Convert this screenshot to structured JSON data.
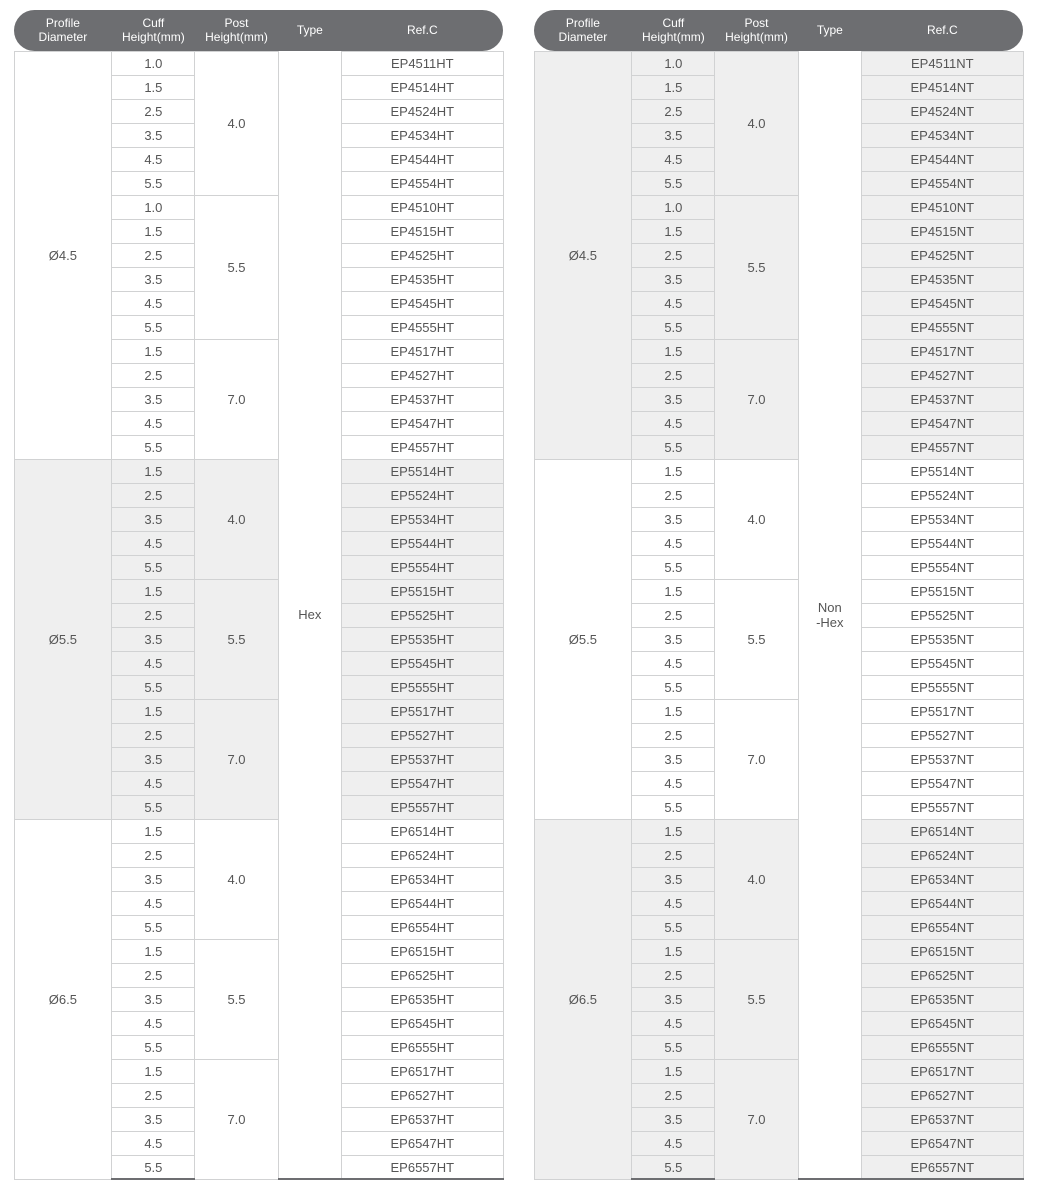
{
  "headers": {
    "profile": "Profile\nDiameter",
    "cuff": "Cuff\nHeight(mm)",
    "post": "Post\nHeight(mm)",
    "type": "Type",
    "ref": "Ref.C"
  },
  "tables": [
    {
      "type_label": "Hex",
      "type_rowspan": 47,
      "groups": [
        {
          "profile": "Ø4.5",
          "shade": false,
          "subs": [
            {
              "post": "4.0",
              "rows": [
                {
                  "cuff": "1.0",
                  "ref": "EP4511HT"
                },
                {
                  "cuff": "1.5",
                  "ref": "EP4514HT"
                },
                {
                  "cuff": "2.5",
                  "ref": "EP4524HT"
                },
                {
                  "cuff": "3.5",
                  "ref": "EP4534HT"
                },
                {
                  "cuff": "4.5",
                  "ref": "EP4544HT"
                },
                {
                  "cuff": "5.5",
                  "ref": "EP4554HT"
                }
              ]
            },
            {
              "post": "5.5",
              "rows": [
                {
                  "cuff": "1.0",
                  "ref": "EP4510HT"
                },
                {
                  "cuff": "1.5",
                  "ref": "EP4515HT"
                },
                {
                  "cuff": "2.5",
                  "ref": "EP4525HT"
                },
                {
                  "cuff": "3.5",
                  "ref": "EP4535HT"
                },
                {
                  "cuff": "4.5",
                  "ref": "EP4545HT"
                },
                {
                  "cuff": "5.5",
                  "ref": "EP4555HT"
                }
              ]
            },
            {
              "post": "7.0",
              "rows": [
                {
                  "cuff": "1.5",
                  "ref": "EP4517HT"
                },
                {
                  "cuff": "2.5",
                  "ref": "EP4527HT"
                },
                {
                  "cuff": "3.5",
                  "ref": "EP4537HT"
                },
                {
                  "cuff": "4.5",
                  "ref": "EP4547HT"
                },
                {
                  "cuff": "5.5",
                  "ref": "EP4557HT"
                }
              ]
            }
          ]
        },
        {
          "profile": "Ø5.5",
          "shade": true,
          "subs": [
            {
              "post": "4.0",
              "rows": [
                {
                  "cuff": "1.5",
                  "ref": "EP5514HT"
                },
                {
                  "cuff": "2.5",
                  "ref": "EP5524HT"
                },
                {
                  "cuff": "3.5",
                  "ref": "EP5534HT"
                },
                {
                  "cuff": "4.5",
                  "ref": "EP5544HT"
                },
                {
                  "cuff": "5.5",
                  "ref": "EP5554HT"
                }
              ]
            },
            {
              "post": "5.5",
              "rows": [
                {
                  "cuff": "1.5",
                  "ref": "EP5515HT"
                },
                {
                  "cuff": "2.5",
                  "ref": "EP5525HT"
                },
                {
                  "cuff": "3.5",
                  "ref": "EP5535HT"
                },
                {
                  "cuff": "4.5",
                  "ref": "EP5545HT"
                },
                {
                  "cuff": "5.5",
                  "ref": "EP5555HT"
                }
              ]
            },
            {
              "post": "7.0",
              "rows": [
                {
                  "cuff": "1.5",
                  "ref": "EP5517HT"
                },
                {
                  "cuff": "2.5",
                  "ref": "EP5527HT"
                },
                {
                  "cuff": "3.5",
                  "ref": "EP5537HT"
                },
                {
                  "cuff": "4.5",
                  "ref": "EP5547HT"
                },
                {
                  "cuff": "5.5",
                  "ref": "EP5557HT"
                }
              ]
            }
          ]
        },
        {
          "profile": "Ø6.5",
          "shade": false,
          "subs": [
            {
              "post": "4.0",
              "rows": [
                {
                  "cuff": "1.5",
                  "ref": "EP6514HT"
                },
                {
                  "cuff": "2.5",
                  "ref": "EP6524HT"
                },
                {
                  "cuff": "3.5",
                  "ref": "EP6534HT"
                },
                {
                  "cuff": "4.5",
                  "ref": "EP6544HT"
                },
                {
                  "cuff": "5.5",
                  "ref": "EP6554HT"
                }
              ]
            },
            {
              "post": "5.5",
              "rows": [
                {
                  "cuff": "1.5",
                  "ref": "EP6515HT"
                },
                {
                  "cuff": "2.5",
                  "ref": "EP6525HT"
                },
                {
                  "cuff": "3.5",
                  "ref": "EP6535HT"
                },
                {
                  "cuff": "4.5",
                  "ref": "EP6545HT"
                },
                {
                  "cuff": "5.5",
                  "ref": "EP6555HT"
                }
              ]
            },
            {
              "post": "7.0",
              "rows": [
                {
                  "cuff": "1.5",
                  "ref": "EP6517HT"
                },
                {
                  "cuff": "2.5",
                  "ref": "EP6527HT"
                },
                {
                  "cuff": "3.5",
                  "ref": "EP6537HT"
                },
                {
                  "cuff": "4.5",
                  "ref": "EP6547HT"
                },
                {
                  "cuff": "5.5",
                  "ref": "EP6557HT"
                }
              ]
            }
          ]
        }
      ]
    },
    {
      "type_label": "Non\n-Hex",
      "type_rowspan": 47,
      "groups": [
        {
          "profile": "Ø4.5",
          "shade": true,
          "subs": [
            {
              "post": "4.0",
              "rows": [
                {
                  "cuff": "1.0",
                  "ref": "EP4511NT"
                },
                {
                  "cuff": "1.5",
                  "ref": "EP4514NT"
                },
                {
                  "cuff": "2.5",
                  "ref": "EP4524NT"
                },
                {
                  "cuff": "3.5",
                  "ref": "EP4534NT"
                },
                {
                  "cuff": "4.5",
                  "ref": "EP4544NT"
                },
                {
                  "cuff": "5.5",
                  "ref": "EP4554NT"
                }
              ]
            },
            {
              "post": "5.5",
              "rows": [
                {
                  "cuff": "1.0",
                  "ref": "EP4510NT"
                },
                {
                  "cuff": "1.5",
                  "ref": "EP4515NT"
                },
                {
                  "cuff": "2.5",
                  "ref": "EP4525NT"
                },
                {
                  "cuff": "3.5",
                  "ref": "EP4535NT"
                },
                {
                  "cuff": "4.5",
                  "ref": "EP4545NT"
                },
                {
                  "cuff": "5.5",
                  "ref": "EP4555NT"
                }
              ]
            },
            {
              "post": "7.0",
              "rows": [
                {
                  "cuff": "1.5",
                  "ref": "EP4517NT"
                },
                {
                  "cuff": "2.5",
                  "ref": "EP4527NT"
                },
                {
                  "cuff": "3.5",
                  "ref": "EP4537NT"
                },
                {
                  "cuff": "4.5",
                  "ref": "EP4547NT"
                },
                {
                  "cuff": "5.5",
                  "ref": "EP4557NT"
                }
              ]
            }
          ]
        },
        {
          "profile": "Ø5.5",
          "shade": false,
          "subs": [
            {
              "post": "4.0",
              "rows": [
                {
                  "cuff": "1.5",
                  "ref": "EP5514NT"
                },
                {
                  "cuff": "2.5",
                  "ref": "EP5524NT"
                },
                {
                  "cuff": "3.5",
                  "ref": "EP5534NT"
                },
                {
                  "cuff": "4.5",
                  "ref": "EP5544NT"
                },
                {
                  "cuff": "5.5",
                  "ref": "EP5554NT"
                }
              ]
            },
            {
              "post": "5.5",
              "rows": [
                {
                  "cuff": "1.5",
                  "ref": "EP5515NT"
                },
                {
                  "cuff": "2.5",
                  "ref": "EP5525NT"
                },
                {
                  "cuff": "3.5",
                  "ref": "EP5535NT"
                },
                {
                  "cuff": "4.5",
                  "ref": "EP5545NT"
                },
                {
                  "cuff": "5.5",
                  "ref": "EP5555NT"
                }
              ]
            },
            {
              "post": "7.0",
              "rows": [
                {
                  "cuff": "1.5",
                  "ref": "EP5517NT"
                },
                {
                  "cuff": "2.5",
                  "ref": "EP5527NT"
                },
                {
                  "cuff": "3.5",
                  "ref": "EP5537NT"
                },
                {
                  "cuff": "4.5",
                  "ref": "EP5547NT"
                },
                {
                  "cuff": "5.5",
                  "ref": "EP5557NT"
                }
              ]
            }
          ]
        },
        {
          "profile": "Ø6.5",
          "shade": true,
          "subs": [
            {
              "post": "4.0",
              "rows": [
                {
                  "cuff": "1.5",
                  "ref": "EP6514NT"
                },
                {
                  "cuff": "2.5",
                  "ref": "EP6524NT"
                },
                {
                  "cuff": "3.5",
                  "ref": "EP6534NT"
                },
                {
                  "cuff": "4.5",
                  "ref": "EP6544NT"
                },
                {
                  "cuff": "5.5",
                  "ref": "EP6554NT"
                }
              ]
            },
            {
              "post": "5.5",
              "rows": [
                {
                  "cuff": "1.5",
                  "ref": "EP6515NT"
                },
                {
                  "cuff": "2.5",
                  "ref": "EP6525NT"
                },
                {
                  "cuff": "3.5",
                  "ref": "EP6535NT"
                },
                {
                  "cuff": "4.5",
                  "ref": "EP6545NT"
                },
                {
                  "cuff": "5.5",
                  "ref": "EP6555NT"
                }
              ]
            },
            {
              "post": "7.0",
              "rows": [
                {
                  "cuff": "1.5",
                  "ref": "EP6517NT"
                },
                {
                  "cuff": "2.5",
                  "ref": "EP6527NT"
                },
                {
                  "cuff": "3.5",
                  "ref": "EP6537NT"
                },
                {
                  "cuff": "4.5",
                  "ref": "EP6547NT"
                },
                {
                  "cuff": "5.5",
                  "ref": "EP6557NT"
                }
              ]
            }
          ]
        }
      ]
    }
  ]
}
